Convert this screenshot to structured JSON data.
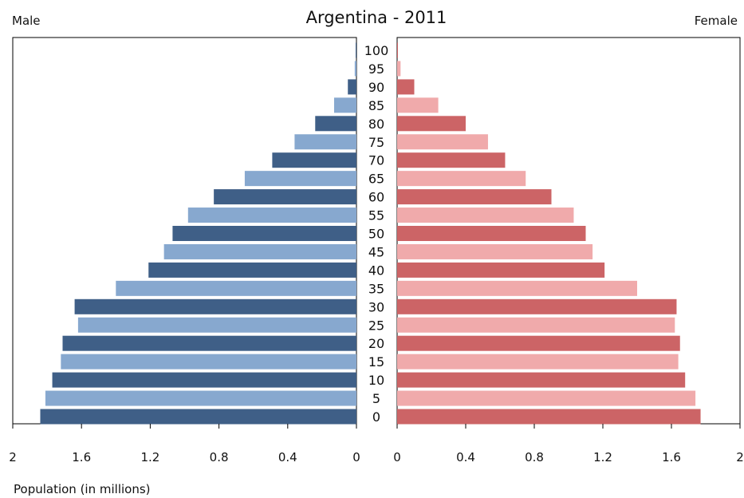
{
  "chart_data": {
    "type": "bar",
    "title": "Argentina - 2011",
    "left_label": "Male",
    "right_label": "Female",
    "xlabel": "Population (in millions)",
    "xlim": [
      0,
      2
    ],
    "x_ticks_male": [
      "2",
      "1.6",
      "1.2",
      "0.8",
      "0.4",
      "0"
    ],
    "x_ticks_female": [
      "0",
      "0.4",
      "0.8",
      "1.2",
      "1.6",
      "2"
    ],
    "x_tick_values_male": [
      2,
      1.6,
      1.2,
      0.8,
      0.4,
      0
    ],
    "x_tick_values_female": [
      0,
      0.4,
      0.8,
      1.2,
      1.6,
      2
    ],
    "categories": [
      "0",
      "5",
      "10",
      "15",
      "20",
      "25",
      "30",
      "35",
      "40",
      "45",
      "50",
      "55",
      "60",
      "65",
      "70",
      "75",
      "80",
      "85",
      "90",
      "95",
      "100"
    ],
    "series": [
      {
        "name": "Male",
        "values": [
          1.84,
          1.81,
          1.77,
          1.72,
          1.71,
          1.62,
          1.64,
          1.4,
          1.21,
          1.12,
          1.07,
          0.98,
          0.83,
          0.65,
          0.49,
          0.36,
          0.24,
          0.13,
          0.05,
          0.01,
          0.002
        ],
        "colors": [
          "#3f5f87",
          "#87a8cf"
        ]
      },
      {
        "name": "Female",
        "values": [
          1.77,
          1.74,
          1.68,
          1.64,
          1.65,
          1.62,
          1.63,
          1.4,
          1.21,
          1.14,
          1.1,
          1.03,
          0.9,
          0.75,
          0.63,
          0.53,
          0.4,
          0.24,
          0.1,
          0.02,
          0.002
        ],
        "colors": [
          "#cc6466",
          "#f0aaab"
        ]
      }
    ],
    "grid": false,
    "legend": "none"
  }
}
